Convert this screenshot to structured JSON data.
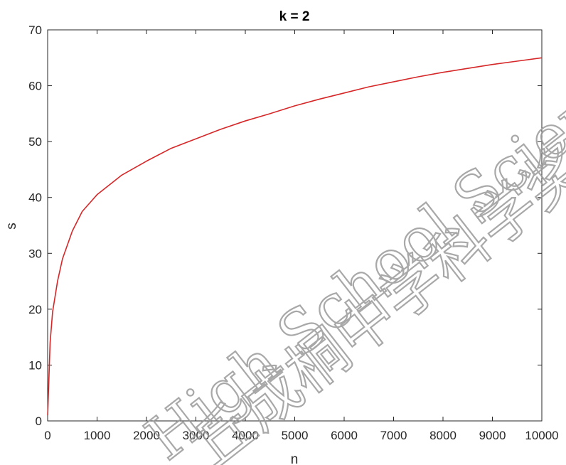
{
  "chart_data": {
    "type": "line",
    "title": "k = 2",
    "xlabel": "n",
    "ylabel": "s",
    "xlim": [
      0,
      10000
    ],
    "ylim": [
      0,
      70
    ],
    "xticks": [
      0,
      1000,
      2000,
      3000,
      4000,
      5000,
      6000,
      7000,
      8000,
      9000,
      10000
    ],
    "yticks": [
      0,
      10,
      20,
      30,
      40,
      50,
      60,
      70
    ],
    "grid": false,
    "series": [
      {
        "color": "#d62728",
        "x": [
          1,
          50,
          100,
          200,
          300,
          500,
          700,
          1000,
          1500,
          2000,
          2500,
          3000,
          3500,
          4000,
          4500,
          5000,
          5500,
          6000,
          6500,
          7000,
          7500,
          8000,
          8500,
          9000,
          9500,
          10000
        ],
        "y": [
          1,
          14,
          19.5,
          25,
          29,
          34,
          37.5,
          40.5,
          44,
          46.5,
          48.8,
          50.5,
          52.2,
          53.7,
          55,
          56.4,
          57.6,
          58.7,
          59.8,
          60.7,
          61.6,
          62.4,
          63.1,
          63.8,
          64.4,
          65
        ]
      }
    ]
  },
  "watermark": {
    "line1": "High School Science",
    "line2": "丘成桐中学科学奖"
  }
}
